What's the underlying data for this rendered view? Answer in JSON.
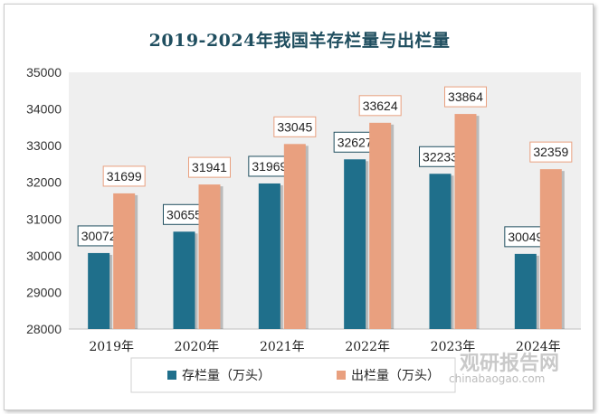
{
  "title": "2019-2024年我国羊存栏量与出栏量",
  "watermark": {
    "logo": "观研报告网",
    "url": "chinabaogao.com"
  },
  "colors": {
    "stock": "#1f6f8b",
    "slaughter": "#e9a07f",
    "title": "#1f4e5f"
  },
  "chart_data": {
    "type": "bar",
    "title": "2019-2024年我国羊存栏量与出栏量",
    "categories": [
      "2019年",
      "2020年",
      "2021年",
      "2022年",
      "2023年",
      "2024年"
    ],
    "series": [
      {
        "name": "存栏量（万头）",
        "values": [
          30072,
          30655,
          31969,
          32627,
          32233,
          30049
        ]
      },
      {
        "name": "出栏量（万头）",
        "values": [
          31699,
          31941,
          33045,
          33624,
          33864,
          32359
        ]
      }
    ],
    "ylim": [
      28000,
      35000
    ],
    "yticks": [
      28000,
      29000,
      30000,
      31000,
      32000,
      33000,
      34000,
      35000
    ],
    "grid": false,
    "legend": "bottom"
  }
}
